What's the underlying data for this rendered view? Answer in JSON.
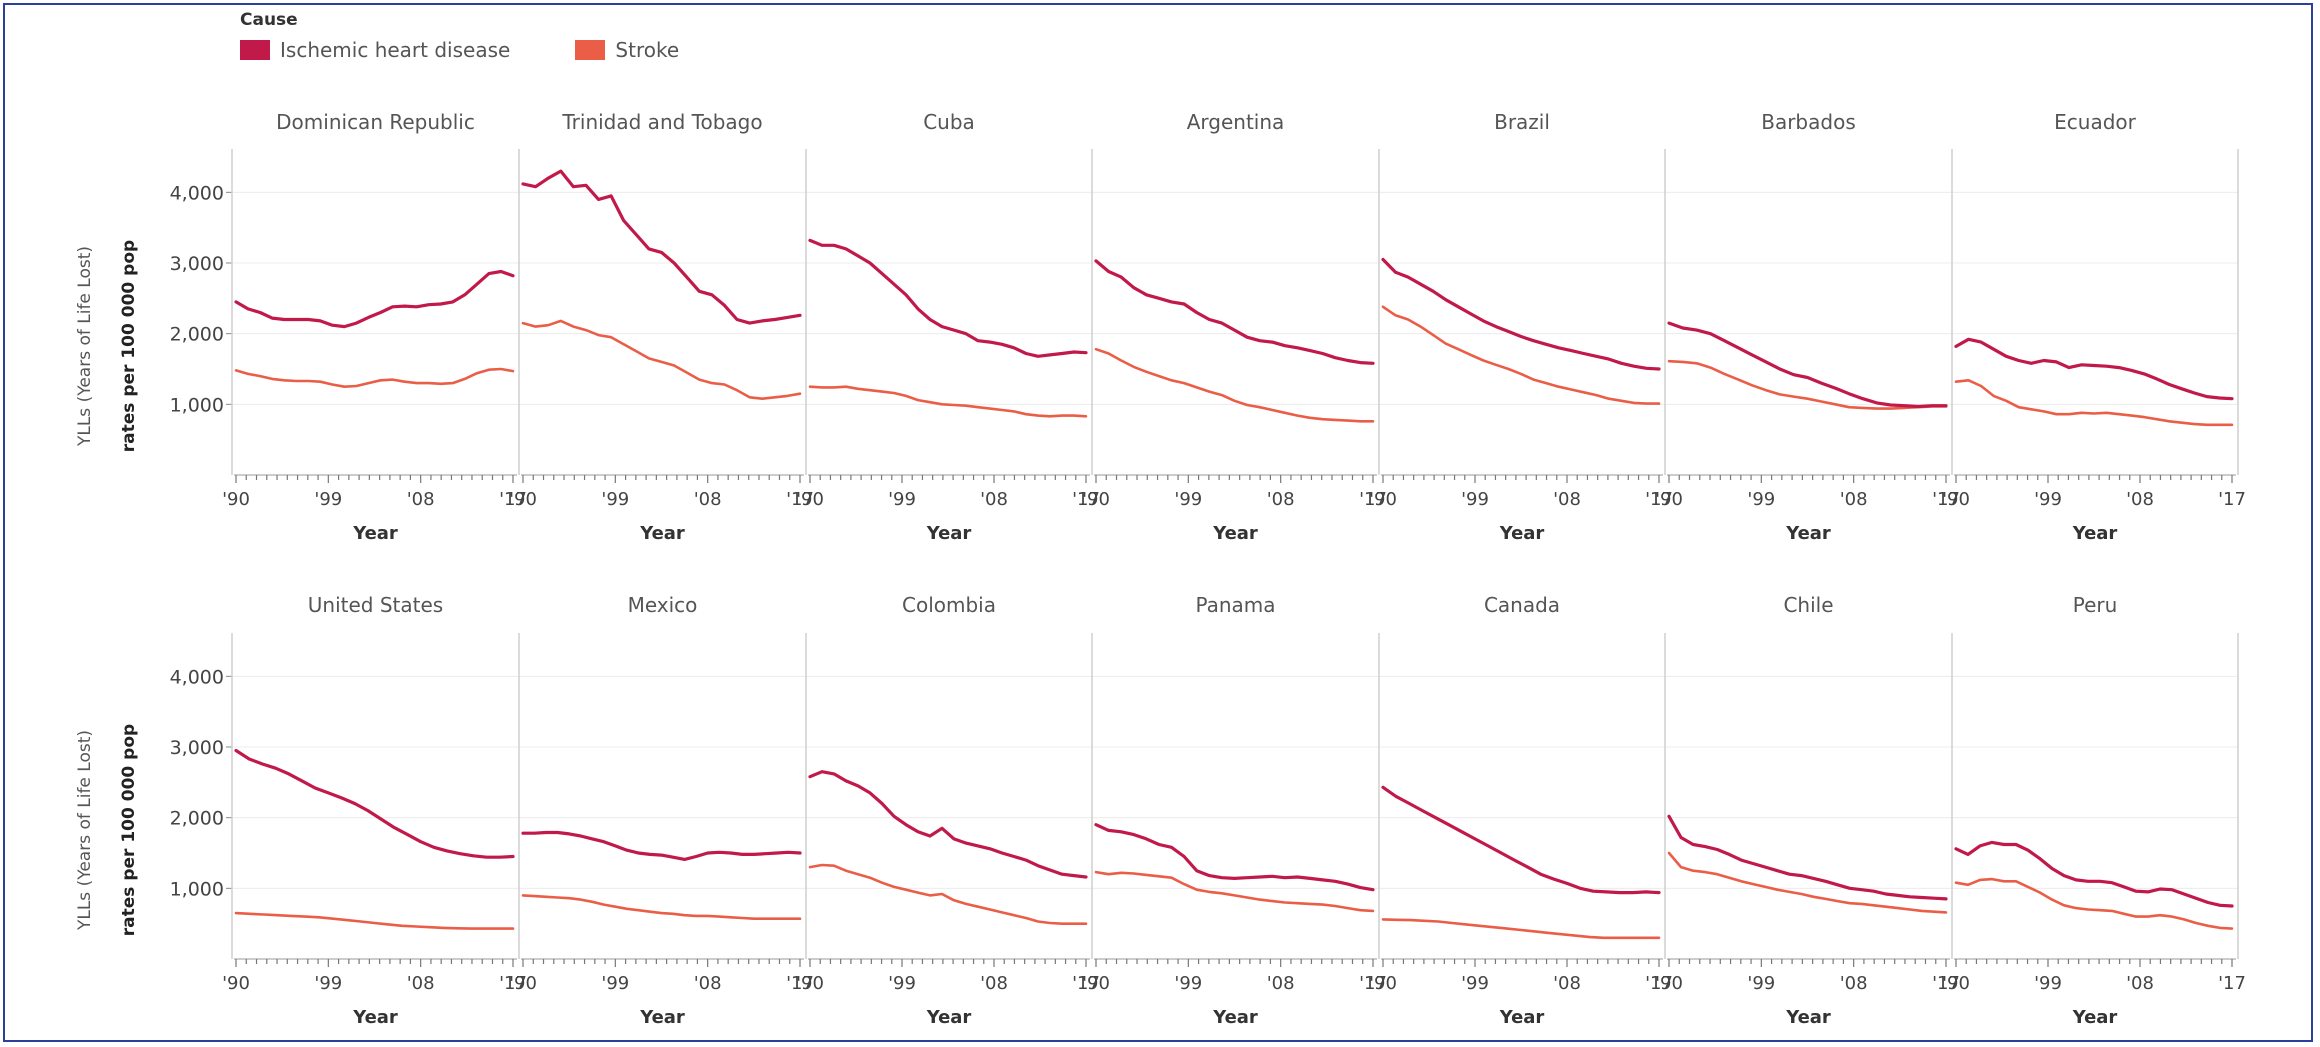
{
  "legend": {
    "title": "Cause",
    "items": [
      {
        "label": "Ischemic heart disease",
        "color": "#c0194a"
      },
      {
        "label": "Stroke",
        "color": "#ea5e47"
      }
    ]
  },
  "chart_data": {
    "type": "line",
    "ylabel_line1": "YLLs (Years of Life Lost)",
    "ylabel_line2": "rates per 100 000 pop",
    "xlabel": "Year",
    "x_range": [
      1990,
      2017
    ],
    "x_ticks": [
      {
        "v": 1990,
        "label": "'90"
      },
      {
        "v": 1999,
        "label": "'99"
      },
      {
        "v": 2008,
        "label": "'08"
      },
      {
        "v": 2017,
        "label": "'17"
      }
    ],
    "ylim": [
      0,
      4500
    ],
    "y_ticks": [
      {
        "v": 1000,
        "label": "1,000"
      },
      {
        "v": 2000,
        "label": "2,000"
      },
      {
        "v": 3000,
        "label": "3,000"
      },
      {
        "v": 4000,
        "label": "4,000"
      }
    ],
    "series_colors": {
      "ihd": "#c0194a",
      "stroke": "#ea5e47"
    },
    "panels": [
      {
        "country": "Dominican Republic",
        "ihd": [
          2450,
          2350,
          2300,
          2220,
          2200,
          2200,
          2200,
          2180,
          2120,
          2100,
          2150,
          2230,
          2300,
          2380,
          2390,
          2380,
          2410,
          2420,
          2450,
          2550,
          2700,
          2850,
          2880,
          2820
        ],
        "stroke": [
          1480,
          1430,
          1400,
          1360,
          1340,
          1330,
          1330,
          1320,
          1280,
          1250,
          1260,
          1300,
          1340,
          1350,
          1320,
          1300,
          1300,
          1290,
          1300,
          1360,
          1440,
          1490,
          1500,
          1470
        ]
      },
      {
        "country": "Trinidad and Tobago",
        "ihd": [
          4120,
          4080,
          4200,
          4300,
          4080,
          4100,
          3900,
          3950,
          3600,
          3400,
          3200,
          3150,
          3000,
          2800,
          2600,
          2550,
          2400,
          2200,
          2150,
          2180,
          2200,
          2230,
          2260
        ],
        "stroke": [
          2150,
          2100,
          2120,
          2180,
          2100,
          2050,
          1980,
          1950,
          1850,
          1750,
          1650,
          1600,
          1550,
          1450,
          1350,
          1300,
          1280,
          1200,
          1100,
          1080,
          1100,
          1120,
          1150
        ]
      },
      {
        "country": "Cuba",
        "ihd": [
          3320,
          3250,
          3250,
          3200,
          3100,
          3000,
          2850,
          2700,
          2550,
          2350,
          2200,
          2100,
          2050,
          2000,
          1900,
          1880,
          1850,
          1800,
          1720,
          1680,
          1700,
          1720,
          1740,
          1730
        ],
        "stroke": [
          1250,
          1240,
          1240,
          1250,
          1220,
          1200,
          1180,
          1160,
          1120,
          1060,
          1030,
          1000,
          990,
          980,
          960,
          940,
          920,
          900,
          860,
          840,
          830,
          840,
          840,
          830
        ]
      },
      {
        "country": "Argentina",
        "ihd": [
          3030,
          2880,
          2800,
          2650,
          2550,
          2500,
          2450,
          2420,
          2300,
          2200,
          2150,
          2050,
          1950,
          1900,
          1880,
          1830,
          1800,
          1760,
          1720,
          1660,
          1620,
          1590,
          1580
        ],
        "stroke": [
          1780,
          1720,
          1620,
          1530,
          1460,
          1400,
          1340,
          1300,
          1240,
          1180,
          1130,
          1050,
          990,
          960,
          920,
          880,
          840,
          810,
          790,
          780,
          770,
          760,
          760
        ]
      },
      {
        "country": "Brazil",
        "ihd": [
          3050,
          2870,
          2800,
          2700,
          2600,
          2480,
          2380,
          2280,
          2180,
          2100,
          2030,
          1960,
          1900,
          1850,
          1800,
          1760,
          1720,
          1680,
          1640,
          1580,
          1540,
          1510,
          1500
        ],
        "stroke": [
          2380,
          2260,
          2200,
          2100,
          1980,
          1860,
          1780,
          1700,
          1620,
          1560,
          1500,
          1430,
          1350,
          1300,
          1250,
          1210,
          1170,
          1130,
          1080,
          1050,
          1020,
          1010,
          1010
        ]
      },
      {
        "country": "Barbados",
        "ihd": [
          2150,
          2080,
          2050,
          2000,
          1900,
          1800,
          1700,
          1600,
          1500,
          1420,
          1380,
          1300,
          1230,
          1150,
          1080,
          1020,
          990,
          980,
          970,
          980,
          980
        ],
        "stroke": [
          1610,
          1600,
          1580,
          1520,
          1430,
          1350,
          1270,
          1200,
          1140,
          1110,
          1080,
          1040,
          1000,
          960,
          950,
          940,
          940,
          950,
          960,
          970,
          970
        ]
      },
      {
        "country": "Ecuador",
        "ihd": [
          1820,
          1920,
          1880,
          1780,
          1680,
          1620,
          1580,
          1620,
          1600,
          1520,
          1560,
          1550,
          1540,
          1520,
          1480,
          1430,
          1360,
          1280,
          1220,
          1160,
          1110,
          1090,
          1080
        ],
        "stroke": [
          1320,
          1340,
          1260,
          1120,
          1050,
          960,
          930,
          900,
          860,
          860,
          880,
          870,
          880,
          860,
          840,
          820,
          790,
          760,
          740,
          720,
          710,
          710,
          710
        ]
      },
      {
        "country": "United States",
        "ihd": [
          2950,
          2830,
          2760,
          2700,
          2620,
          2520,
          2420,
          2350,
          2280,
          2200,
          2100,
          1980,
          1860,
          1760,
          1660,
          1580,
          1530,
          1490,
          1460,
          1440,
          1440,
          1450
        ],
        "stroke": [
          650,
          640,
          630,
          620,
          610,
          600,
          590,
          570,
          550,
          530,
          510,
          490,
          470,
          460,
          450,
          440,
          435,
          430,
          430,
          430,
          430
        ]
      },
      {
        "country": "Mexico",
        "ihd": [
          1780,
          1780,
          1790,
          1790,
          1770,
          1740,
          1700,
          1660,
          1600,
          1540,
          1500,
          1480,
          1470,
          1440,
          1410,
          1450,
          1500,
          1510,
          1500,
          1480,
          1480,
          1490,
          1500,
          1510,
          1500
        ],
        "stroke": [
          900,
          890,
          880,
          870,
          860,
          840,
          810,
          770,
          740,
          710,
          690,
          670,
          650,
          640,
          620,
          610,
          610,
          600,
          590,
          580,
          570,
          570,
          570,
          570,
          570
        ]
      },
      {
        "country": "Colombia",
        "ihd": [
          2580,
          2650,
          2620,
          2520,
          2450,
          2350,
          2200,
          2020,
          1900,
          1800,
          1740,
          1850,
          1700,
          1640,
          1600,
          1560,
          1500,
          1450,
          1400,
          1320,
          1260,
          1200,
          1180,
          1160
        ],
        "stroke": [
          1300,
          1330,
          1320,
          1250,
          1200,
          1150,
          1080,
          1020,
          980,
          940,
          900,
          920,
          830,
          780,
          740,
          700,
          660,
          620,
          580,
          530,
          510,
          500,
          500,
          500
        ]
      },
      {
        "country": "Panama",
        "ihd": [
          1900,
          1820,
          1800,
          1760,
          1700,
          1620,
          1580,
          1450,
          1250,
          1180,
          1150,
          1140,
          1150,
          1160,
          1170,
          1150,
          1160,
          1140,
          1120,
          1100,
          1060,
          1010,
          980
        ],
        "stroke": [
          1230,
          1200,
          1220,
          1210,
          1190,
          1170,
          1150,
          1060,
          980,
          950,
          930,
          900,
          870,
          840,
          820,
          800,
          790,
          780,
          770,
          750,
          720,
          690,
          680
        ]
      },
      {
        "country": "Canada",
        "ihd": [
          2430,
          2300,
          2200,
          2100,
          2000,
          1900,
          1800,
          1700,
          1600,
          1500,
          1400,
          1300,
          1200,
          1130,
          1070,
          1000,
          960,
          950,
          940,
          940,
          950,
          940
        ],
        "stroke": [
          560,
          555,
          550,
          540,
          530,
          510,
          490,
          470,
          450,
          430,
          410,
          390,
          370,
          350,
          330,
          310,
          300,
          300,
          300,
          300,
          300
        ]
      },
      {
        "country": "Chile",
        "ihd": [
          2020,
          1720,
          1620,
          1590,
          1550,
          1480,
          1400,
          1350,
          1300,
          1250,
          1200,
          1180,
          1140,
          1100,
          1050,
          1000,
          980,
          960,
          920,
          900,
          880,
          870,
          860,
          850
        ],
        "stroke": [
          1500,
          1300,
          1250,
          1230,
          1200,
          1150,
          1100,
          1060,
          1020,
          980,
          950,
          920,
          880,
          850,
          820,
          790,
          780,
          760,
          740,
          720,
          700,
          680,
          670,
          660
        ]
      },
      {
        "country": "Peru",
        "ihd": [
          1560,
          1480,
          1600,
          1650,
          1620,
          1620,
          1540,
          1420,
          1280,
          1180,
          1120,
          1100,
          1100,
          1080,
          1020,
          960,
          950,
          990,
          980,
          920,
          860,
          800,
          760,
          750
        ],
        "stroke": [
          1080,
          1050,
          1120,
          1130,
          1100,
          1100,
          1020,
          940,
          840,
          760,
          720,
          700,
          690,
          680,
          640,
          600,
          600,
          620,
          600,
          560,
          510,
          470,
          440,
          430
        ]
      }
    ]
  }
}
